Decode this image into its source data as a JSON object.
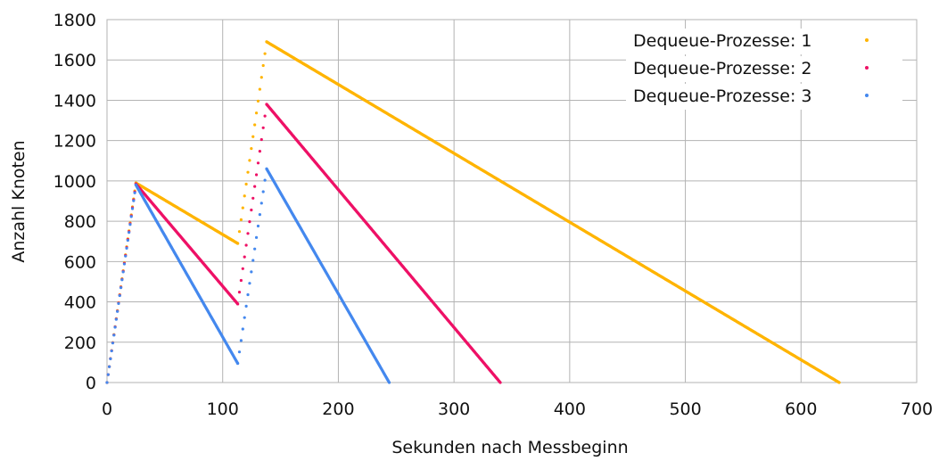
{
  "chart_data": {
    "type": "scatter",
    "xlabel": "Sekunden nach Messbeginn",
    "ylabel": "Anzahl Knoten",
    "xlim": [
      0,
      700
    ],
    "ylim": [
      0,
      1800
    ],
    "xticks": [
      0,
      100,
      200,
      300,
      400,
      500,
      600,
      700
    ],
    "yticks": [
      0,
      200,
      400,
      600,
      800,
      1000,
      1200,
      1400,
      1600,
      1800
    ],
    "grid": true,
    "legend_position": "top-right",
    "series": [
      {
        "name": "Dequeue-Prozesse: 1",
        "color": "#ffb400",
        "segments": [
          {
            "from": [
              0,
              0
            ],
            "to": [
              25,
              990
            ],
            "step": 1.0
          },
          {
            "from": [
              25,
              990
            ],
            "to": [
              113,
              690
            ],
            "step": 0.5
          },
          {
            "from": [
              113,
              690
            ],
            "to": [
              138,
              1690
            ],
            "step": 1.5
          },
          {
            "from": [
              138,
              1690
            ],
            "to": [
              633,
              0
            ],
            "step": 0.5
          }
        ]
      },
      {
        "name": "Dequeue-Prozesse: 2",
        "color": "#ee1166",
        "segments": [
          {
            "from": [
              0,
              0
            ],
            "to": [
              25,
              985
            ],
            "step": 1.0
          },
          {
            "from": [
              25,
              985
            ],
            "to": [
              113,
              390
            ],
            "step": 0.5
          },
          {
            "from": [
              113,
              390
            ],
            "to": [
              138,
              1380
            ],
            "step": 1.5
          },
          {
            "from": [
              138,
              1380
            ],
            "to": [
              340,
              0
            ],
            "step": 0.5
          }
        ]
      },
      {
        "name": "Dequeue-Prozesse: 3",
        "color": "#4488ee",
        "segments": [
          {
            "from": [
              0,
              0
            ],
            "to": [
              25,
              980
            ],
            "step": 1.0
          },
          {
            "from": [
              25,
              980
            ],
            "to": [
              113,
              95
            ],
            "step": 0.5
          },
          {
            "from": [
              113,
              95
            ],
            "to": [
              138,
              1060
            ],
            "step": 1.5
          },
          {
            "from": [
              138,
              1060
            ],
            "to": [
              244,
              0
            ],
            "step": 0.5
          }
        ]
      }
    ]
  }
}
